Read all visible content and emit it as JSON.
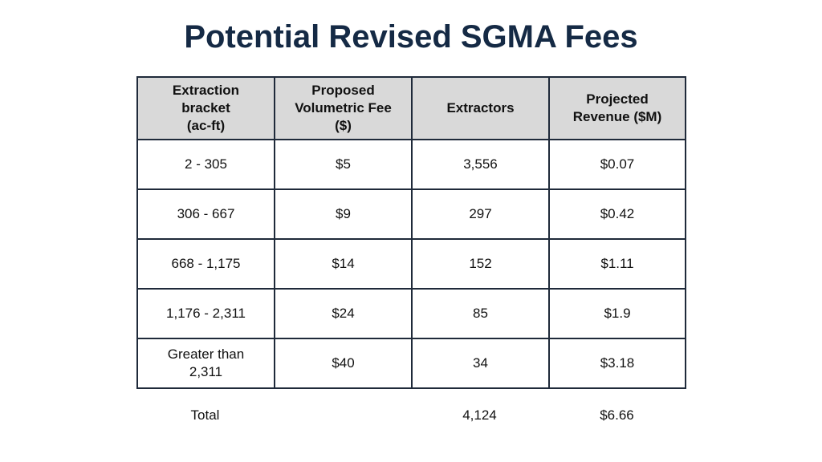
{
  "title": "Potential Revised SGMA Fees",
  "colors": {
    "title": "#152a45",
    "header_bg": "#d9d9d9",
    "border": "#1f2a3a"
  },
  "table": {
    "headers": [
      [
        "Extraction",
        "bracket",
        "(ac-ft)"
      ],
      [
        "Proposed",
        "Volumetric Fee",
        "($)"
      ],
      [
        "Extractors"
      ],
      [
        "Projected",
        "Revenue ($M)"
      ]
    ],
    "rows": [
      {
        "bracket": [
          "2 - 305"
        ],
        "fee": "$5",
        "extractors": "3,556",
        "revenue": "$0.07"
      },
      {
        "bracket": [
          "306 - 667"
        ],
        "fee": "$9",
        "extractors": "297",
        "revenue": "$0.42"
      },
      {
        "bracket": [
          "668 - 1,175"
        ],
        "fee": "$14",
        "extractors": "152",
        "revenue": "$1.11"
      },
      {
        "bracket": [
          "1,176 - 2,311"
        ],
        "fee": "$24",
        "extractors": "85",
        "revenue": "$1.9"
      },
      {
        "bracket": [
          "Greater than",
          "2,311"
        ],
        "fee": "$40",
        "extractors": "34",
        "revenue": "$3.18"
      }
    ]
  },
  "total": {
    "label": "Total",
    "extractors": "4,124",
    "revenue": "$6.66"
  }
}
